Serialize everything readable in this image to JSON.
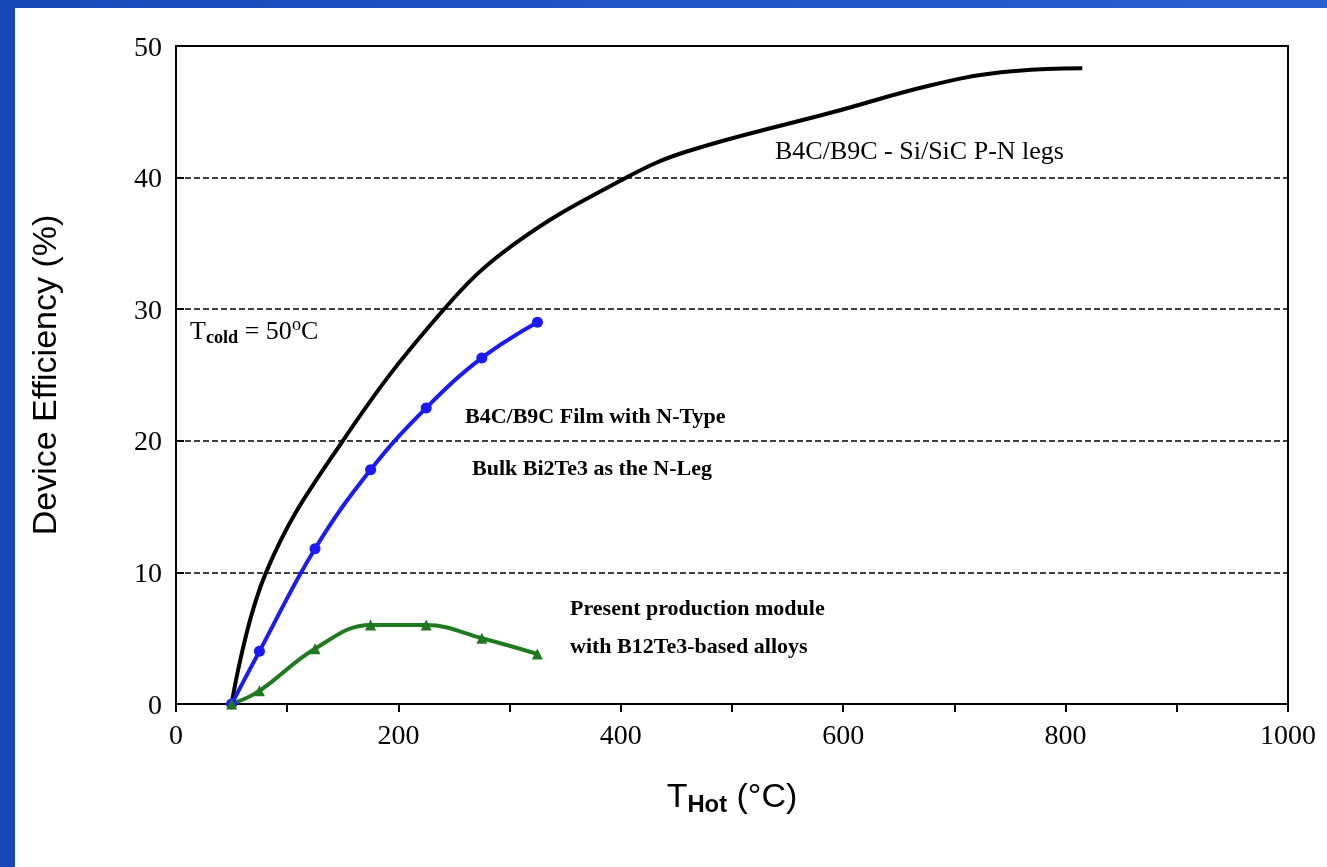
{
  "chart_data": {
    "type": "line",
    "xlabel": "T$_{Hot}$ (°C)",
    "ylabel": "Device Efficiency (%)",
    "xlim": [
      0,
      1000
    ],
    "ylim": [
      0,
      50
    ],
    "xticks": [
      0,
      {
        "value": 100,
        "label": null
      },
      200,
      {
        "value": 300,
        "label": null
      },
      400,
      {
        "value": 500,
        "label": null
      },
      600,
      {
        "value": 700,
        "label": null
      },
      800,
      {
        "value": 900,
        "label": null
      },
      1000
    ],
    "yticks": [
      0,
      10,
      20,
      30,
      40,
      50
    ],
    "grid": "y",
    "series": [
      {
        "color": "#000000",
        "marker": "none",
        "x": [
          50,
          81,
          150,
          241,
          305,
          405,
          460,
          592,
          678,
          742,
          815
        ],
        "values": [
          0,
          10,
          20,
          30,
          35,
          40,
          42,
          45,
          47,
          48,
          48.3
        ]
      },
      {
        "color": "#1a1aff",
        "marker": "circle",
        "x": [
          50,
          75,
          125,
          175,
          225,
          275,
          325
        ],
        "values": [
          0,
          4,
          11.8,
          17.8,
          22.5,
          26.3,
          29
        ]
      },
      {
        "color": "#1f7a1f",
        "marker": "triangle",
        "x": [
          50,
          75,
          125,
          175,
          225,
          275,
          325
        ],
        "values": [
          0,
          1,
          4.2,
          6,
          6,
          5,
          3.8
        ]
      }
    ],
    "annotations": [
      "B4C/B9C - Si/SiC P-N legs",
      "T$_{cold}$ = 50$^{o}$C",
      "B4C/B9C Film with N-Type",
      "Bulk Bi2Te3 as the N-Leg",
      "Present production module",
      "with B12Te3-based alloys"
    ]
  }
}
